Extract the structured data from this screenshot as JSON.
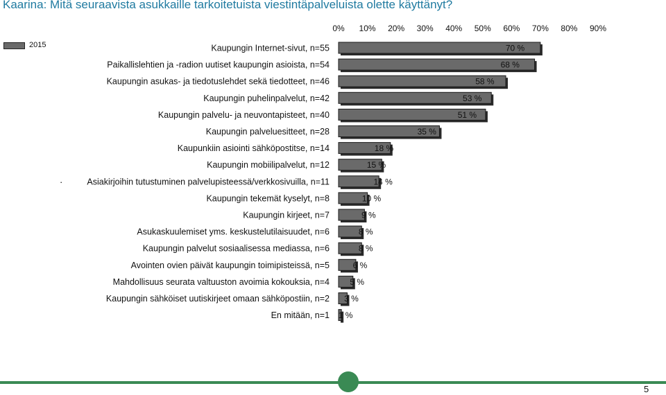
{
  "title": "Kaarina: Mitä seuraavista asukkaille tarkoitetuista viestintäpalveluista olette käyttänyt?",
  "legend": {
    "label": "2015"
  },
  "stray_mark": "·",
  "page_number": "5",
  "colors": {
    "bar": "#6a6a6a",
    "title": "#1f7aa0",
    "accent": "#3a8a54"
  },
  "chart_data": {
    "type": "bar",
    "orientation": "horizontal",
    "title": "Kaarina: Mitä seuraavista asukkaille tarkoitetuista viestintäpalveluista olette käyttänyt?",
    "series": [
      {
        "name": "2015",
        "values": [
          70,
          68,
          58,
          53,
          51,
          35,
          18,
          15,
          14,
          10,
          9,
          8,
          8,
          6,
          5,
          3,
          1
        ]
      }
    ],
    "categories": [
      "Kaupungin Internet-sivut, n=55",
      "Paikallislehtien ja -radion uutiset kaupungin asioista, n=54",
      "Kaupungin asukas- ja tiedotuslehdet sekä tiedotteet, n=46",
      "Kaupungin puhelinpalvelut, n=42",
      "Kaupungin palvelu- ja neuvontapisteet, n=40",
      "Kaupungin palveluesitteet, n=28",
      "Kaupunkiin asiointi sähköpostitse, n=14",
      "Kaupungin mobiilipalvelut, n=12",
      "Asiakirjoihin tutustuminen palvelupisteessä/verkkosivuilla, n=11",
      "Kaupungin tekemät kyselyt, n=8",
      "Kaupungin kirjeet, n=7",
      "Asukaskuulemiset yms. keskustelutilaisuudet, n=6",
      "Kaupungin palvelut sosiaalisessa mediassa, n=6",
      "Avointen ovien päivät kaupungin toimipisteissä, n=5",
      "Mahdollisuus seurata valtuuston avoimia kokouksia, n=4",
      "Kaupungin sähköiset uutiskirjeet omaan sähköpostiin, n=2",
      "En mitään, n=1"
    ],
    "value_labels": [
      "70 %",
      "68 %",
      "58 %",
      "53 %",
      "51 %",
      "35 %",
      "18 %",
      "15 %",
      "14 %",
      "10 %",
      "9 %",
      "8 %",
      "8 %",
      "6 %",
      "5 %",
      "3 %",
      "1 %"
    ],
    "x_ticks": [
      0,
      10,
      20,
      30,
      40,
      50,
      60,
      70,
      80,
      90
    ],
    "x_tick_labels": [
      "0%",
      "10%",
      "20%",
      "30%",
      "40%",
      "50%",
      "60%",
      "70%",
      "80%",
      "90%"
    ],
    "xlim": [
      0,
      90
    ],
    "grid": false,
    "legend_position": "top-left"
  }
}
